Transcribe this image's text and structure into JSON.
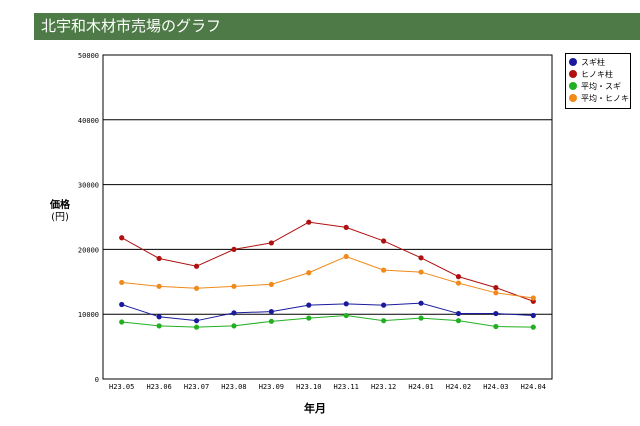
{
  "title": "北宇和木材市売場のグラフ",
  "chart_data": {
    "type": "line",
    "categories": [
      "H23.05",
      "H23.06",
      "H23.07",
      "H23.08",
      "H23.09",
      "H23.10",
      "H23.11",
      "H23.12",
      "H24.01",
      "H24.02",
      "H24.03",
      "H24.04"
    ],
    "ylabel_main": "価格",
    "ylabel_unit": "(円)",
    "xlabel": "年月",
    "ylim": [
      0,
      50000
    ],
    "yticks": [
      "0",
      "10000",
      "20000",
      "30000",
      "40000",
      "50000"
    ],
    "grid": true,
    "legend_position": "top-right",
    "series": [
      {
        "name": "スギ柱",
        "color": "#1a1a9e",
        "values": [
          11500,
          9600,
          9000,
          10200,
          10400,
          11400,
          11600,
          11400,
          11700,
          10100,
          10100,
          9800
        ]
      },
      {
        "name": "ヒノキ柱",
        "color": "#b01010",
        "values": [
          21800,
          18600,
          17400,
          20000,
          21000,
          24200,
          23400,
          21300,
          18700,
          15800,
          14100,
          12000
        ]
      },
      {
        "name": "平均・スギ",
        "color": "#22b022",
        "values": [
          8800,
          8200,
          8000,
          8200,
          8900,
          9400,
          9800,
          9000,
          9400,
          9000,
          8100,
          8000
        ]
      },
      {
        "name": "平均・ヒノキ",
        "color": "#f08a1a",
        "values": [
          14900,
          14300,
          14000,
          14300,
          14600,
          16400,
          18900,
          16800,
          16500,
          14800,
          13300,
          12500
        ]
      }
    ]
  }
}
